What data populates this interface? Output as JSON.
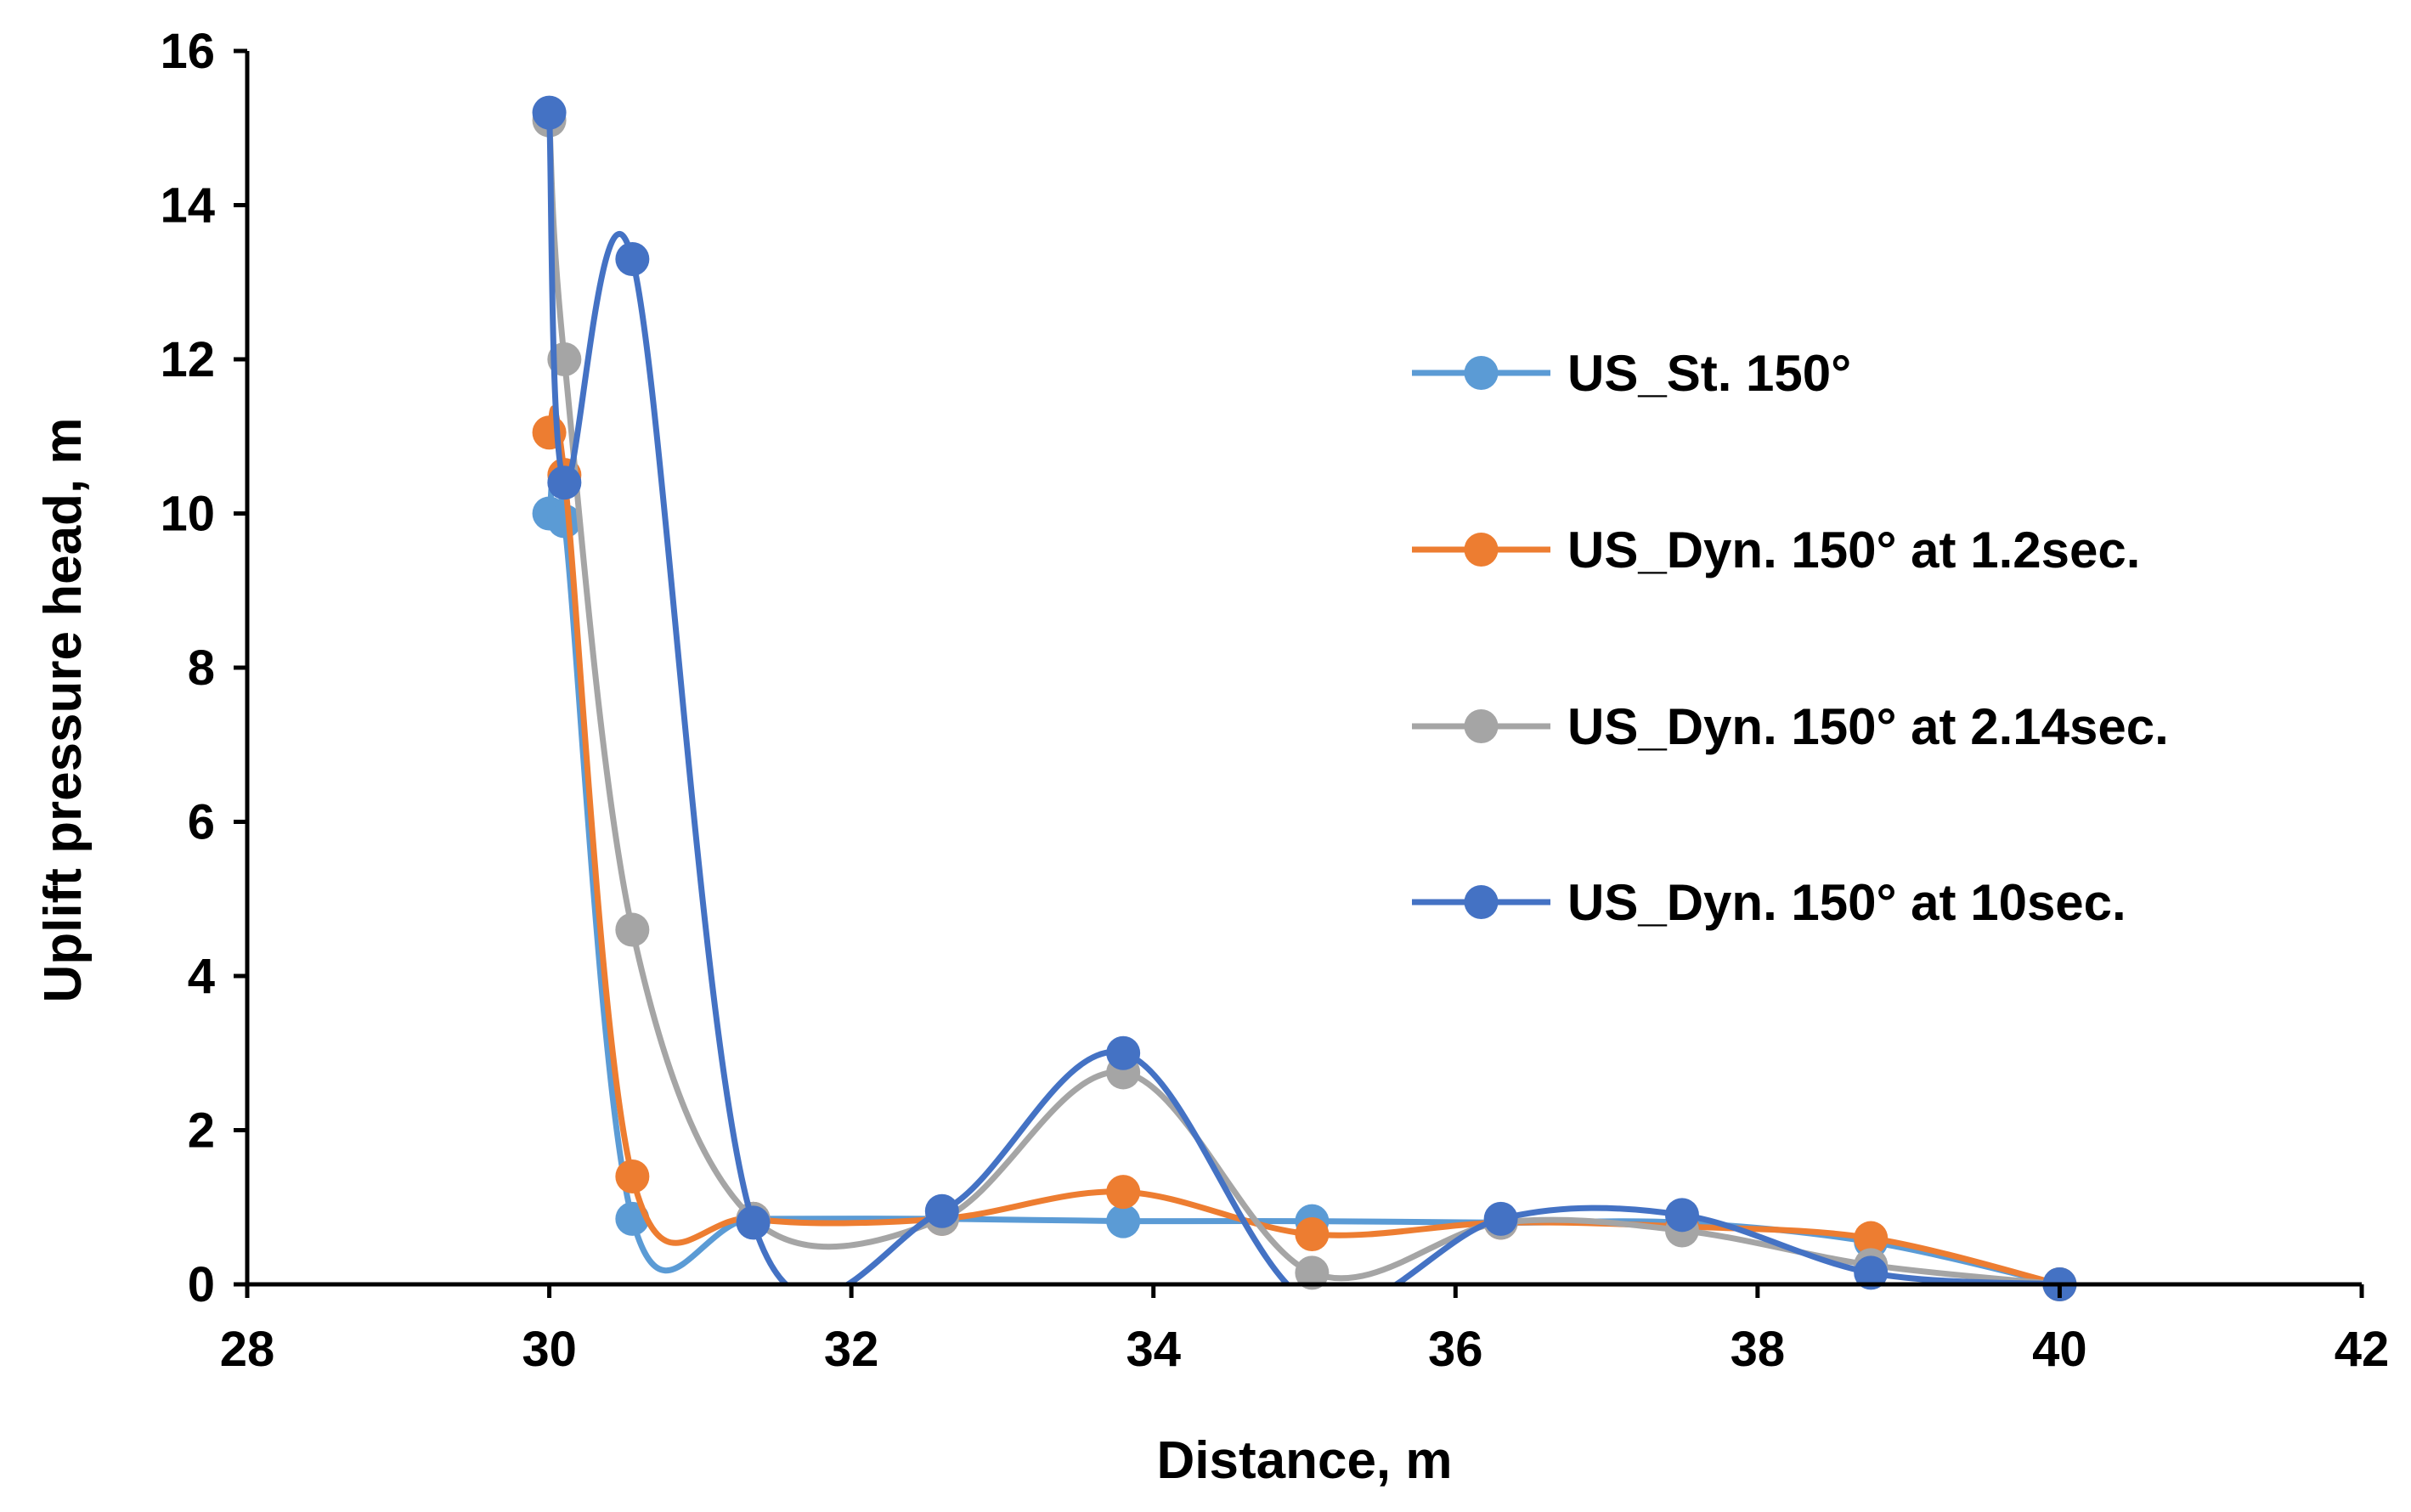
{
  "chart_data": {
    "type": "scatter",
    "xlabel": "Distance, m",
    "ylabel": "Uplift pressure head, m",
    "xlim": [
      28,
      42
    ],
    "ylim": [
      0,
      16
    ],
    "xticks": [
      28,
      30,
      32,
      34,
      36,
      38,
      40,
      42
    ],
    "yticks": [
      0,
      2,
      4,
      6,
      8,
      10,
      12,
      14,
      16
    ],
    "grid": false,
    "legend_position": "right",
    "smoothed_lines": true,
    "series": [
      {
        "name": "US_St. 150°",
        "color": "#5B9BD5",
        "points": [
          [
            30.0,
            10.0
          ],
          [
            30.1,
            9.9
          ],
          [
            30.55,
            0.85
          ],
          [
            31.35,
            0.85
          ],
          [
            32.6,
            0.85
          ],
          [
            33.8,
            0.82
          ],
          [
            35.05,
            0.82
          ],
          [
            36.3,
            0.8
          ],
          [
            37.5,
            0.8
          ],
          [
            38.75,
            0.55
          ],
          [
            40.0,
            0.0
          ]
        ]
      },
      {
        "name": "US_Dyn. 150° at 1.2sec.",
        "color": "#ED7D31",
        "points": [
          [
            30.0,
            11.05
          ],
          [
            30.1,
            10.5
          ],
          [
            30.55,
            1.4
          ],
          [
            31.35,
            0.85
          ],
          [
            32.6,
            0.85
          ],
          [
            33.8,
            1.2
          ],
          [
            35.05,
            0.65
          ],
          [
            36.3,
            0.8
          ],
          [
            37.5,
            0.75
          ],
          [
            38.75,
            0.6
          ],
          [
            40.0,
            0.0
          ]
        ]
      },
      {
        "name": "US_Dyn. 150° at 2.14sec.",
        "color": "#A5A5A5",
        "points": [
          [
            30.0,
            15.1
          ],
          [
            30.1,
            12.0
          ],
          [
            30.55,
            4.6
          ],
          [
            31.35,
            0.85
          ],
          [
            32.6,
            0.85
          ],
          [
            33.8,
            2.75
          ],
          [
            35.05,
            0.15
          ],
          [
            36.3,
            0.8
          ],
          [
            37.5,
            0.7
          ],
          [
            38.75,
            0.25
          ],
          [
            40.0,
            0.0
          ]
        ]
      },
      {
        "name": "US_Dyn. 150° at 10sec.",
        "color": "#4472C4",
        "points": [
          [
            30.0,
            15.2
          ],
          [
            30.1,
            10.4
          ],
          [
            30.55,
            13.3
          ],
          [
            31.35,
            0.8
          ],
          [
            32.6,
            0.95
          ],
          [
            33.8,
            3.0
          ],
          [
            35.05,
            -0.25
          ],
          [
            36.3,
            0.85
          ],
          [
            37.5,
            0.9
          ],
          [
            38.75,
            0.15
          ],
          [
            40.0,
            0.0
          ]
        ]
      }
    ]
  }
}
